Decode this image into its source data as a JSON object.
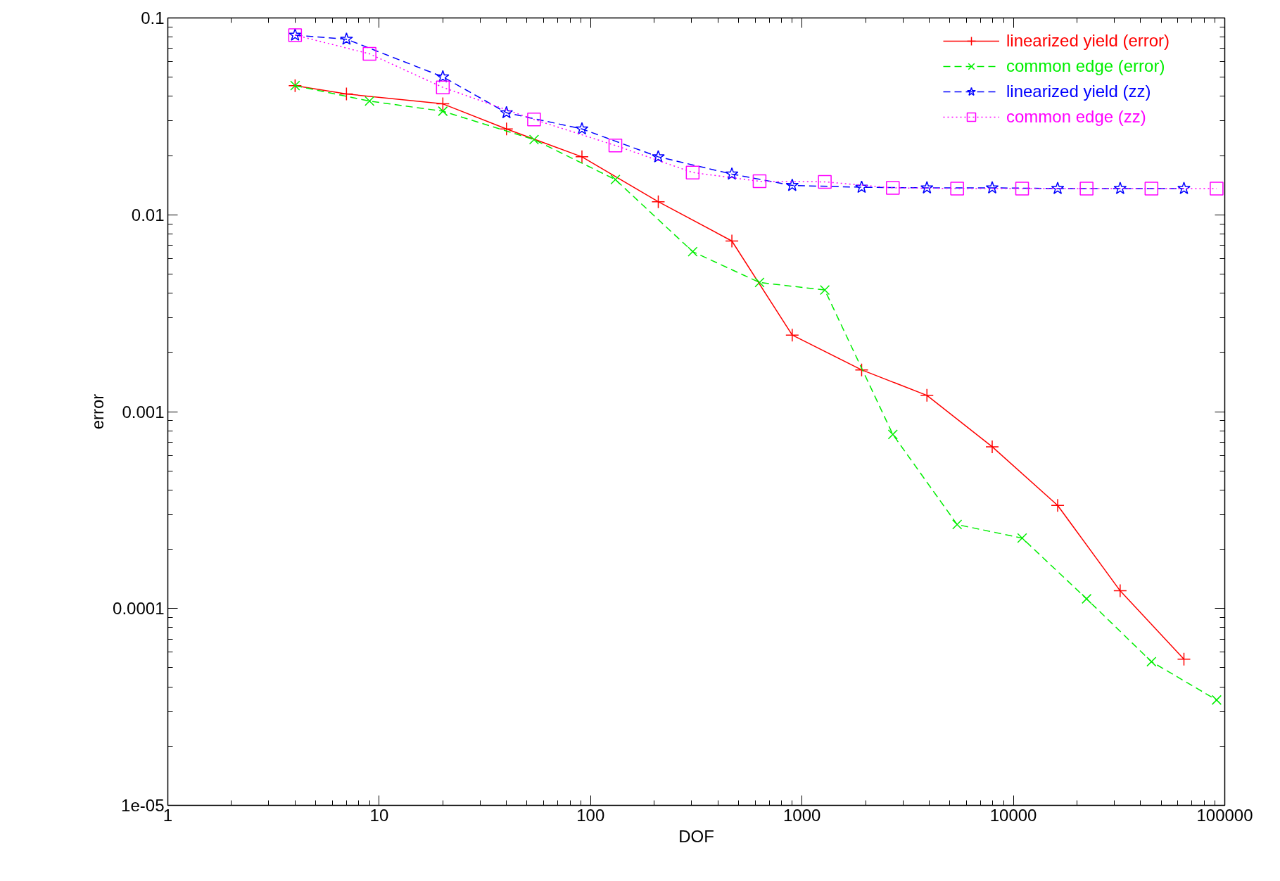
{
  "chart_data": {
    "type": "line",
    "xlabel": "DOF",
    "ylabel": "error",
    "log": "xy",
    "grid": false,
    "legend": "top right",
    "xlim": [
      1,
      100000
    ],
    "ylim": [
      1e-05,
      0.1
    ],
    "xticks": [
      1,
      10,
      100,
      1000,
      10000,
      100000
    ],
    "yticks": [
      {
        "value": 1e-05,
        "label": "1e-05"
      },
      {
        "value": 0.0001,
        "label": "0.0001"
      },
      {
        "value": 0.001,
        "label": "0.001"
      },
      {
        "value": 0.01,
        "label": "0.01"
      },
      {
        "value": 0.1,
        "label": "0.1"
      }
    ],
    "series": [
      {
        "name": "linearized yield (error)",
        "color": "#ff0000",
        "marker": "cross",
        "line_style": "solid",
        "x": [
          4,
          7,
          20,
          40,
          91,
          209,
          466,
          899,
          1915,
          3900,
          7940,
          16200,
          32000,
          64100
        ],
        "values": [
          0.0453,
          0.0411,
          0.0366,
          0.0273,
          0.0197,
          0.01165,
          0.00736,
          0.00245,
          0.00163,
          0.00121,
          0.000663,
          0.000334,
          0.000123,
          5.53e-05
        ]
      },
      {
        "name": "common edge (error)",
        "color": "#00ee00",
        "marker": "x",
        "line_style": "dashed",
        "x": [
          4,
          9,
          20,
          54,
          131,
          304,
          630,
          1282,
          2690,
          5420,
          11000,
          22200,
          45000,
          91500
        ],
        "values": [
          0.0453,
          0.0378,
          0.0336,
          0.0241,
          0.0151,
          0.0065,
          0.00453,
          0.00415,
          0.000766,
          0.000267,
          0.000228,
          0.000112,
          5.37e-05,
          3.43e-05
        ]
      },
      {
        "name": "linearized yield (zz)",
        "color": "#0000ff",
        "marker": "star",
        "line_style": "dashed",
        "x": [
          4,
          7,
          20,
          40,
          91,
          209,
          466,
          899,
          1915,
          3900,
          7940,
          16200,
          32000,
          64100
        ],
        "values": [
          0.0818,
          0.078,
          0.0502,
          0.033,
          0.0273,
          0.0197,
          0.0161,
          0.0141,
          0.0138,
          0.0137,
          0.0137,
          0.0136,
          0.0136,
          0.0136
        ]
      },
      {
        "name": "common edge (zz)",
        "color": "#ff00ff",
        "marker": "square",
        "line_style": "dotted",
        "x": [
          4,
          9,
          20,
          54,
          131,
          304,
          630,
          1282,
          2690,
          5420,
          11000,
          22200,
          45000,
          91500
        ],
        "values": [
          0.0818,
          0.0657,
          0.0444,
          0.0305,
          0.0225,
          0.0164,
          0.0148,
          0.0147,
          0.0137,
          0.0136,
          0.0136,
          0.0136,
          0.0136,
          0.0136
        ]
      }
    ]
  }
}
